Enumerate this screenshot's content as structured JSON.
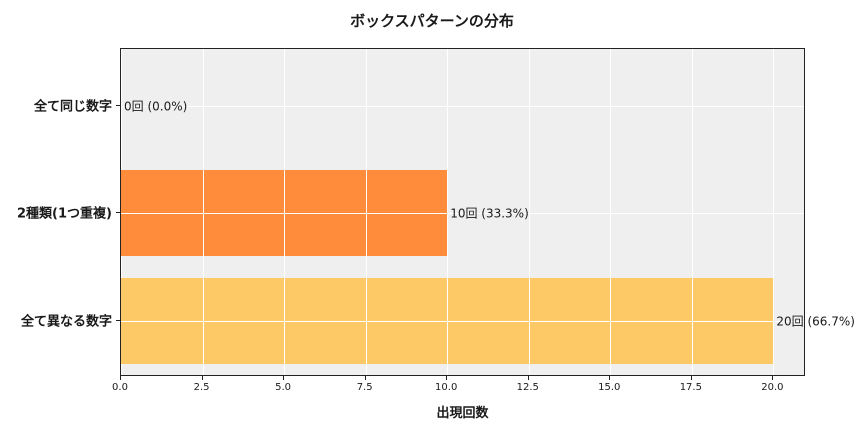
{
  "chart_data": {
    "type": "bar",
    "orientation": "horizontal",
    "title": "ボックスパターンの分布",
    "xlabel": "出現回数",
    "ylabel": "",
    "categories": [
      "全て同じ数字",
      "2種類(1つ重複)",
      "全て異なる数字"
    ],
    "values": [
      0,
      10,
      20
    ],
    "value_labels": [
      "0回 (0.0%)",
      "10回 (33.3%)",
      "20回 (66.7%)"
    ],
    "colors": [
      "#ff7f2a",
      "#ff8c3a",
      "#fdc966"
    ],
    "xlim": [
      0,
      21
    ],
    "xticks": [
      0.0,
      2.5,
      5.0,
      7.5,
      10.0,
      12.5,
      15.0,
      17.5,
      20.0
    ],
    "xtick_labels": [
      "0.0",
      "2.5",
      "5.0",
      "7.5",
      "10.0",
      "12.5",
      "15.0",
      "17.5",
      "20.0"
    ],
    "grid": true,
    "legend": null,
    "background": "#efefef"
  }
}
